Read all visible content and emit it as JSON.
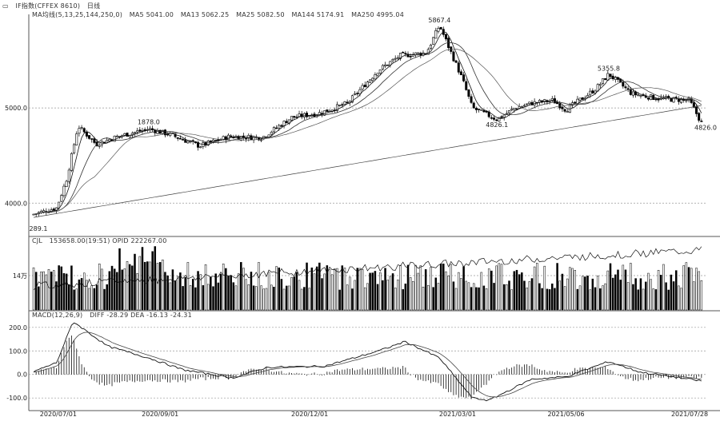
{
  "header": {
    "instrument": "IF指数(CFFEX 8610)",
    "period": "日线",
    "ma_params": "MA均线(5,13,25,144,250,0)",
    "ma_values": [
      "MA5 5041.00",
      "MA13 5062.25",
      "MA25 5082.50",
      "MA144 5174.91",
      "MA250 4995.04"
    ]
  },
  "panels": {
    "price": {
      "yticks": [
        {
          "label": "5000.0",
          "v": 5000
        },
        {
          "label": "4000.0",
          "v": 4000
        }
      ],
      "annotations": [
        "5867.4",
        "1878.0",
        "5355.8",
        "4826.1",
        "4826.0",
        "289.1"
      ]
    },
    "volume": {
      "title": "CJL",
      "values_text": "153658.00(19:51)  OPID 222267.00",
      "ytick": "14万"
    },
    "macd": {
      "title": "MACD(12,26,9)",
      "values_text": "DIFF -28.29  DEA -16.13  -24.31",
      "yticks": [
        "200.0",
        "100.0",
        "0.0",
        "-100.0"
      ]
    }
  },
  "xaxis": [
    "2020/07/01",
    "2020/09/01",
    "2020/12/01",
    "2021/03/01",
    "2021/05/06",
    "2021/07/28"
  ],
  "colors": {
    "up": "#000000",
    "down": "#000000",
    "grid": "#9a9a9a",
    "line": "#333333"
  },
  "chart_data": {
    "type": "line",
    "price_anchors": [
      {
        "x": "2020/06/15",
        "y": 3880
      },
      {
        "x": "2020/06/30",
        "y": 3950
      },
      {
        "x": "2020/07/06",
        "y": 4250
      },
      {
        "x": "2020/07/13",
        "y": 4810
      },
      {
        "x": "2020/07/24",
        "y": 4620
      },
      {
        "x": "2020/08/06",
        "y": 4700
      },
      {
        "x": "2020/08/25",
        "y": 4780
      },
      {
        "x": "2020/09/07",
        "y": 4720
      },
      {
        "x": "2020/09/25",
        "y": 4600
      },
      {
        "x": "2020/10/13",
        "y": 4700
      },
      {
        "x": "2020/11/02",
        "y": 4690
      },
      {
        "x": "2020/11/20",
        "y": 4900
      },
      {
        "x": "2020/12/08",
        "y": 4950
      },
      {
        "x": "2020/12/24",
        "y": 5050
      },
      {
        "x": "2021/01/12",
        "y": 5400
      },
      {
        "x": "2021/01/25",
        "y": 5550
      },
      {
        "x": "2021/02/10",
        "y": 5580
      },
      {
        "x": "2021/02/18",
        "y": 5867.4
      },
      {
        "x": "2021/03/04",
        "y": 5300
      },
      {
        "x": "2021/03/10",
        "y": 5000
      },
      {
        "x": "2021/03/25",
        "y": 4880
      },
      {
        "x": "2021/04/05",
        "y": 5000
      },
      {
        "x": "2021/04/15",
        "y": 5050
      },
      {
        "x": "2021/04/28",
        "y": 5080
      },
      {
        "x": "2021/05/06",
        "y": 4980
      },
      {
        "x": "2021/05/24",
        "y": 5200
      },
      {
        "x": "2021/06/01",
        "y": 5355.8
      },
      {
        "x": "2021/06/15",
        "y": 5150
      },
      {
        "x": "2021/07/01",
        "y": 5100
      },
      {
        "x": "2021/07/20",
        "y": 5080
      },
      {
        "x": "2021/07/28",
        "y": 4826
      }
    ],
    "ylim_price": [
      3700,
      5950
    ],
    "macd_diff_anchors": [
      {
        "x": "2020/06/15",
        "y": 10
      },
      {
        "x": "2020/06/30",
        "y": 50
      },
      {
        "x": "2020/07/10",
        "y": 225
      },
      {
        "x": "2020/07/31",
        "y": 120
      },
      {
        "x": "2020/08/25",
        "y": 70
      },
      {
        "x": "2020/09/15",
        "y": 20
      },
      {
        "x": "2020/10/15",
        "y": -15
      },
      {
        "x": "2020/11/05",
        "y": 30
      },
      {
        "x": "2020/12/10",
        "y": 35
      },
      {
        "x": "2021/01/12",
        "y": 100
      },
      {
        "x": "2021/01/28",
        "y": 140
      },
      {
        "x": "2021/02/18",
        "y": 70
      },
      {
        "x": "2021/03/10",
        "y": -100
      },
      {
        "x": "2021/03/20",
        "y": -110
      },
      {
        "x": "2021/04/15",
        "y": -20
      },
      {
        "x": "2021/05/06",
        "y": -10
      },
      {
        "x": "2021/06/01",
        "y": 55
      },
      {
        "x": "2021/06/20",
        "y": 10
      },
      {
        "x": "2021/07/28",
        "y": -28.29
      }
    ],
    "ylim_macd": [
      -140,
      240
    ]
  }
}
